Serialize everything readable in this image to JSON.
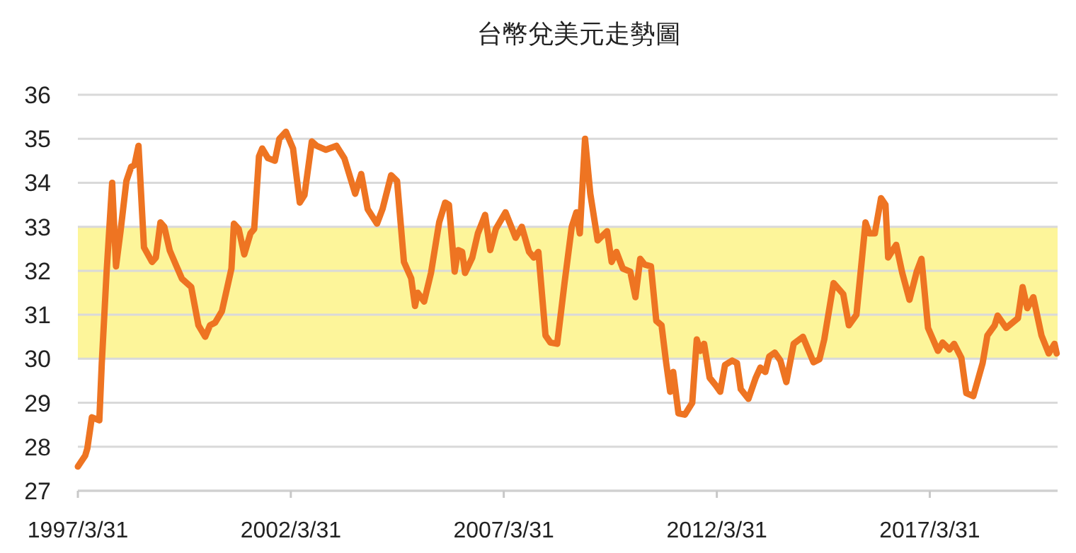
{
  "chart_data": {
    "type": "line",
    "title": "台幣兌美元走勢圖",
    "series": [
      {
        "color": "#ee7422",
        "x": [
          "1997-03-31",
          "1997-06-02",
          "1997-06-20",
          "1997-07-29",
          "1997-10-01",
          "1997-10-22",
          "1997-12-02",
          "1998-01-19",
          "1998-02-21",
          "1998-04-01",
          "1998-05-21",
          "1998-07-01",
          "1998-07-29",
          "1998-09-02",
          "1998-10-19",
          "1998-12-27",
          "1999-01-29",
          "1999-03-09",
          "1999-04-11",
          "1999-05-28",
          "1999-07-19",
          "1999-09-09",
          "1999-11-28",
          "2000-01-29",
          "2000-03-27",
          "2000-05-07",
          "2000-06-20",
          "2000-08-17",
          "2000-11-07",
          "2000-11-28",
          "2001-01-08",
          "2001-02-25",
          "2001-04-19",
          "2001-05-21",
          "2001-07-01",
          "2001-07-29",
          "2001-09-16",
          "2001-11-14",
          "2001-12-23",
          "2002-02-17",
          "2002-04-19",
          "2002-06-16",
          "2002-07-26",
          "2002-09-27",
          "2002-11-07",
          "2003-01-26",
          "2003-04-26",
          "2003-07-04",
          "2003-10-04",
          "2003-11-25",
          "2004-01-19",
          "2004-04-08",
          "2004-05-25",
          "2004-08-07",
          "2004-09-27",
          "2004-11-25",
          "2005-01-26",
          "2005-02-28",
          "2005-03-23",
          "2005-05-17",
          "2005-07-15",
          "2005-09-23",
          "2005-11-14",
          "2005-12-16",
          "2006-02-03",
          "2006-03-05",
          "2006-04-08",
          "2006-05-03",
          "2006-07-04",
          "2006-08-21",
          "2006-10-22",
          "2006-12-05",
          "2007-01-22",
          "2007-04-15",
          "2007-07-11",
          "2007-09-02",
          "2007-11-03",
          "2007-12-13",
          "2008-01-22",
          "2008-03-23",
          "2008-05-03",
          "2008-07-01",
          "2008-09-02",
          "2008-11-03",
          "2008-12-13",
          "2009-01-11",
          "2009-02-25",
          "2009-04-11",
          "2009-06-13",
          "2009-09-02",
          "2009-10-11",
          "2009-11-21",
          "2010-01-15",
          "2010-03-20",
          "2010-05-03",
          "2010-06-13",
          "2010-07-22",
          "2010-09-13",
          "2010-10-29",
          "2010-12-13",
          "2011-01-22",
          "2011-02-25",
          "2011-03-23",
          "2011-05-07",
          "2011-07-01",
          "2011-09-02",
          "2011-10-11",
          "2011-11-10",
          "2011-12-13",
          "2012-01-29",
          "2012-03-20",
          "2012-04-29",
          "2012-06-09",
          "2012-08-10",
          "2012-09-20",
          "2012-10-22",
          "2012-12-27",
          "2013-02-28",
          "2013-04-08",
          "2013-05-21",
          "2013-06-23",
          "2013-08-10",
          "2013-09-27",
          "2013-11-17",
          "2014-01-19",
          "2014-04-08",
          "2014-07-08",
          "2014-08-28",
          "2014-10-08",
          "2014-12-27",
          "2015-03-20",
          "2015-05-07",
          "2015-07-11",
          "2015-09-27",
          "2015-10-29",
          "2015-12-16",
          "2016-02-07",
          "2016-03-16",
          "2016-04-08",
          "2016-06-16",
          "2016-08-07",
          "2016-10-08",
          "2016-12-09",
          "2017-01-19",
          "2017-03-16",
          "2017-06-09",
          "2017-07-19",
          "2017-09-16",
          "2017-10-26",
          "2017-12-27",
          "2018-02-07",
          "2018-04-08",
          "2018-06-27",
          "2018-08-07",
          "2018-10-08",
          "2018-11-03",
          "2019-01-15",
          "2019-04-26",
          "2019-06-05",
          "2019-07-15",
          "2019-09-05",
          "2019-11-14",
          "2020-01-15",
          "2020-03-05",
          "2020-03-23"
        ],
        "values": [
          27.55,
          27.8,
          27.96,
          28.67,
          28.6,
          29.9,
          31.95,
          34.0,
          32.1,
          32.9,
          34.04,
          34.36,
          34.4,
          34.84,
          32.53,
          32.2,
          32.3,
          33.1,
          33.0,
          32.46,
          32.14,
          31.82,
          31.63,
          30.76,
          30.5,
          30.76,
          30.82,
          31.08,
          32.05,
          33.07,
          32.95,
          32.37,
          32.85,
          32.95,
          34.6,
          34.78,
          34.56,
          34.5,
          35.0,
          35.16,
          34.78,
          33.55,
          33.72,
          34.94,
          34.84,
          34.75,
          34.84,
          34.55,
          33.75,
          34.2,
          33.4,
          33.07,
          33.4,
          34.17,
          34.04,
          32.2,
          31.83,
          31.2,
          31.5,
          31.3,
          31.95,
          33.1,
          33.55,
          33.5,
          31.98,
          32.47,
          32.43,
          31.95,
          32.3,
          32.85,
          33.27,
          32.47,
          32.95,
          33.33,
          32.75,
          33.0,
          32.43,
          32.3,
          32.43,
          30.53,
          30.37,
          30.34,
          31.72,
          33.0,
          33.33,
          32.85,
          35.0,
          33.75,
          32.69,
          32.9,
          32.2,
          32.43,
          32.05,
          31.98,
          31.4,
          32.27,
          32.14,
          32.1,
          30.86,
          30.76,
          29.9,
          29.25,
          29.7,
          28.76,
          28.73,
          29.0,
          30.44,
          30.18,
          30.34,
          29.57,
          29.4,
          29.25,
          29.86,
          29.96,
          29.9,
          29.31,
          29.09,
          29.57,
          29.8,
          29.7,
          30.05,
          30.14,
          29.96,
          29.47,
          30.34,
          30.5,
          29.92,
          29.99,
          30.44,
          31.72,
          31.47,
          30.76,
          31.0,
          33.1,
          32.85,
          32.85,
          33.65,
          33.5,
          32.3,
          32.59,
          31.95,
          31.34,
          31.98,
          32.27,
          30.7,
          30.18,
          30.37,
          30.21,
          30.34,
          30.02,
          29.22,
          29.15,
          29.9,
          30.53,
          30.76,
          30.98,
          30.7,
          30.92,
          31.63,
          31.15,
          31.4,
          30.53,
          30.12,
          30.34,
          30.12
        ]
      }
    ],
    "xlim": [
      "1997-03-31",
      "2020-03-31"
    ],
    "xticks": [
      {
        "value": "1997-03-31",
        "label": "1997/3/31"
      },
      {
        "value": "2002-03-31",
        "label": "2002/3/31"
      },
      {
        "value": "2007-03-31",
        "label": "2007/3/31"
      },
      {
        "value": "2012-03-31",
        "label": "2012/3/31"
      },
      {
        "value": "2017-03-31",
        "label": "2017/3/31"
      }
    ],
    "ylim": [
      27,
      36
    ],
    "yticks": [
      27,
      28,
      29,
      30,
      31,
      32,
      33,
      34,
      35,
      36
    ],
    "bands": [
      {
        "axis": "y",
        "from": 30,
        "to": 33,
        "color": "#fdf59a"
      }
    ],
    "grid": "y",
    "marker": "none",
    "line_style": "solid"
  }
}
